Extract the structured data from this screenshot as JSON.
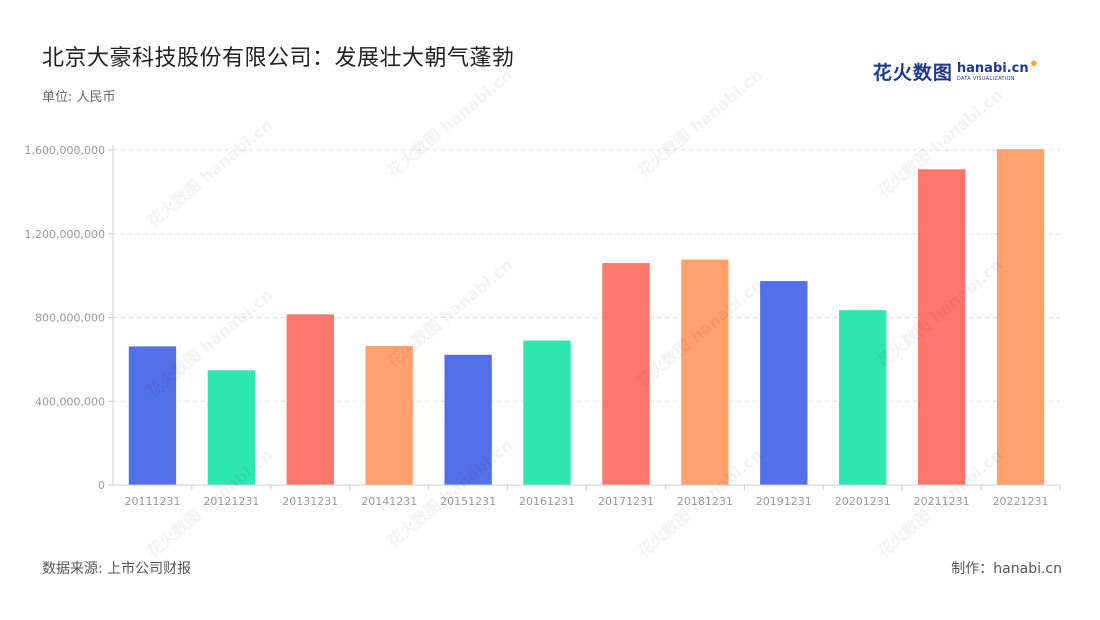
{
  "header": {
    "title": "北京大豪科技股份有限公司：发展壮大朝气蓬勃",
    "unit": "单位: 人民币"
  },
  "logo": {
    "cn": "花火数图",
    "en": "hanabi.cn",
    "sub": "DATA VISUALIZATION"
  },
  "footer": {
    "source": "数据来源: 上市公司财报",
    "credit": "制作：hanabi.cn"
  },
  "colors": {
    "palette": [
      "#5470e8",
      "#2ee6b0",
      "#ff766c",
      "#ffa16e"
    ],
    "grid": "#dddddd",
    "axis": "#cccccc"
  },
  "chart_data": {
    "type": "bar",
    "categories": [
      "20111231",
      "20121231",
      "20131231",
      "20141231",
      "20151231",
      "20161231",
      "20171231",
      "20181231",
      "20191231",
      "20201231",
      "20211231",
      "20221231"
    ],
    "values": [
      662000000,
      548000000,
      815000000,
      664000000,
      622000000,
      690000000,
      1060000000,
      1077000000,
      974000000,
      835000000,
      1508000000,
      1604000000
    ],
    "ylim": [
      0,
      1600000000
    ],
    "yticks": [
      0,
      400000000,
      800000000,
      1200000000,
      1600000000
    ],
    "ytick_labels": [
      "0",
      "400,000,000",
      "800,000,000",
      "1,200,000,000",
      "1,600,000,000"
    ],
    "grid": true,
    "title": "北京大豪科技股份有限公司：发展壮大朝气蓬勃"
  }
}
